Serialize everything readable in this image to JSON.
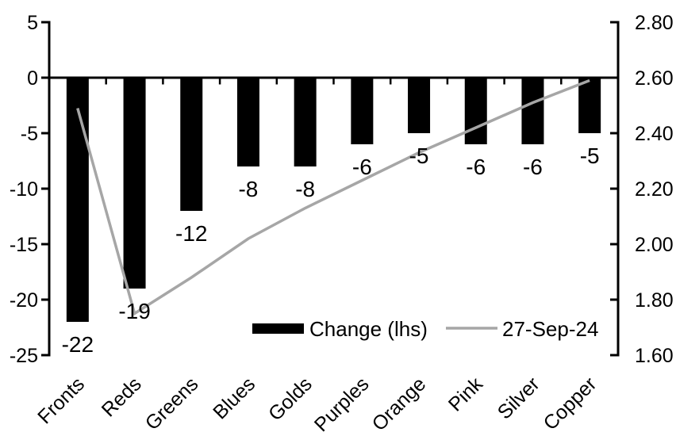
{
  "window": {
    "background": "#ffffff"
  },
  "chart_data": {
    "type": "combo",
    "title": "",
    "categories": [
      "Fronts",
      "Reds",
      "Greens",
      "Blues",
      "Golds",
      "Purples",
      "Orange",
      "Pink",
      "Silver",
      "Copper"
    ],
    "series": [
      {
        "name": "Change (lhs)",
        "type": "bar",
        "axis": "left",
        "color": "#000000",
        "values": [
          -22,
          -19,
          -12,
          -8,
          -8,
          -6,
          -5,
          -6,
          -6,
          -5
        ],
        "data_labels": [
          "-22",
          "-19",
          "-12",
          "-8",
          "-8",
          "-6",
          "-5",
          "-6",
          "-6",
          "-5"
        ]
      },
      {
        "name": "27-Sep-24",
        "type": "line",
        "axis": "right",
        "color": "#a6a6a6",
        "values": [
          2.49,
          1.75,
          1.88,
          2.02,
          2.13,
          2.23,
          2.33,
          2.42,
          2.51,
          2.59
        ]
      }
    ],
    "left_axis": {
      "min": -25,
      "max": 5,
      "step": 5,
      "tick_labels": [
        "5",
        "0",
        "-5",
        "-10",
        "-15",
        "-20",
        "-25"
      ]
    },
    "right_axis": {
      "min": 1.6,
      "max": 2.8,
      "step": 0.2,
      "tick_labels": [
        "2.80",
        "2.60",
        "2.40",
        "2.20",
        "2.00",
        "1.80",
        "1.60"
      ]
    },
    "legend": {
      "position": "bottom-inside",
      "entries": [
        "Change (lhs)",
        "27-Sep-24"
      ]
    },
    "grid": false,
    "axis_color": "#000000"
  }
}
